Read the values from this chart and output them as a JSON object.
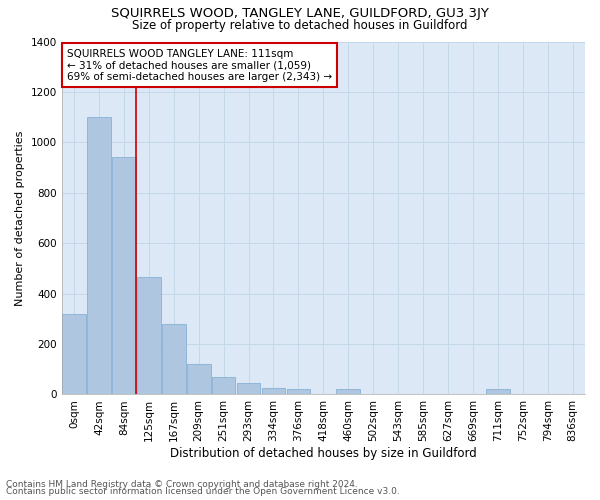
{
  "title": "SQUIRRELS WOOD, TANGLEY LANE, GUILDFORD, GU3 3JY",
  "subtitle": "Size of property relative to detached houses in Guildford",
  "xlabel": "Distribution of detached houses by size in Guildford",
  "ylabel": "Number of detached properties",
  "footer_line1": "Contains HM Land Registry data © Crown copyright and database right 2024.",
  "footer_line2": "Contains public sector information licensed under the Open Government Licence v3.0.",
  "bar_labels": [
    "0sqm",
    "42sqm",
    "84sqm",
    "125sqm",
    "167sqm",
    "209sqm",
    "251sqm",
    "293sqm",
    "334sqm",
    "376sqm",
    "418sqm",
    "460sqm",
    "502sqm",
    "543sqm",
    "585sqm",
    "627sqm",
    "669sqm",
    "711sqm",
    "752sqm",
    "794sqm",
    "836sqm"
  ],
  "bar_heights": [
    320,
    1100,
    940,
    465,
    280,
    120,
    70,
    45,
    25,
    20,
    0,
    20,
    0,
    0,
    0,
    0,
    0,
    20,
    0,
    0,
    0
  ],
  "bar_color": "#aec6e0",
  "bar_edge_color": "#7aaacf",
  "grid_color": "#c5d8ea",
  "background_color": "#dce8f5",
  "annotation_text": "SQUIRRELS WOOD TANGLEY LANE: 111sqm\n← 31% of detached houses are smaller (1,059)\n69% of semi-detached houses are larger (2,343) →",
  "vline_color": "#cc0000",
  "annotation_box_color": "#ffffff",
  "annotation_box_edge": "#cc0000",
  "ylim": [
    0,
    1400
  ],
  "yticks": [
    0,
    200,
    400,
    600,
    800,
    1000,
    1200,
    1400
  ],
  "title_fontsize": 9.5,
  "subtitle_fontsize": 8.5,
  "xlabel_fontsize": 8.5,
  "ylabel_fontsize": 8,
  "tick_fontsize": 7.5,
  "footer_fontsize": 6.5,
  "annotation_fontsize": 7.5
}
